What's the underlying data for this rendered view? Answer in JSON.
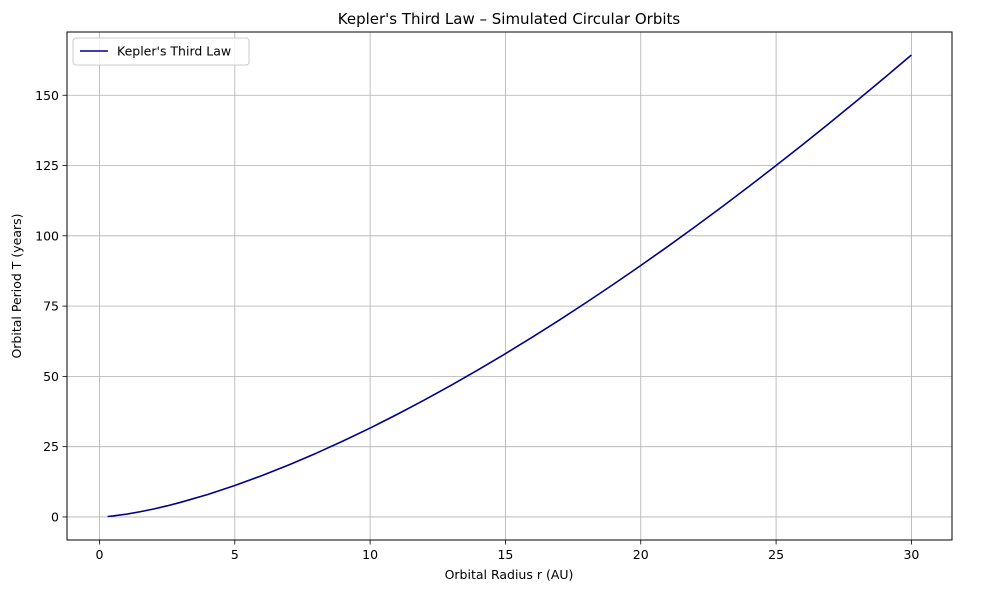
{
  "chart_data": {
    "type": "line",
    "title": "Kepler's Third Law – Simulated Circular Orbits",
    "xlabel": "Orbital Radius r (AU)",
    "ylabel": "Orbital Period T (years)",
    "xlim": [
      -1.2,
      31.5
    ],
    "ylim": [
      -8.2,
      172.5
    ],
    "xticks": [
      0,
      5,
      10,
      15,
      20,
      25,
      30
    ],
    "xtick_labels": [
      "0",
      "5",
      "10",
      "15",
      "20",
      "25",
      "30"
    ],
    "yticks": [
      0,
      25,
      50,
      75,
      100,
      125,
      150
    ],
    "ytick_labels": [
      "0",
      "25",
      "50",
      "75",
      "100",
      "125",
      "150"
    ],
    "grid": true,
    "legend_position": "top-left",
    "series": [
      {
        "name": "Kepler's Third Law",
        "color": "#00008b",
        "x": [
          0.3,
          0.5,
          1,
          1.5,
          2,
          2.5,
          3,
          4,
          5,
          6,
          7,
          8,
          9,
          10,
          11,
          12,
          13,
          14,
          15,
          16,
          17,
          18,
          19,
          20,
          21,
          22,
          23,
          24,
          25,
          26,
          27,
          28,
          29,
          30
        ],
        "y": [
          0.16,
          0.35,
          1.0,
          1.84,
          2.83,
          3.95,
          5.2,
          8.0,
          11.18,
          14.7,
          18.52,
          22.63,
          27.0,
          31.62,
          36.48,
          41.57,
          46.87,
          52.38,
          58.09,
          64.0,
          70.09,
          76.37,
          82.82,
          89.44,
          96.23,
          103.19,
          110.3,
          117.58,
          125.0,
          132.57,
          140.3,
          148.16,
          156.17,
          164.32
        ]
      }
    ]
  }
}
